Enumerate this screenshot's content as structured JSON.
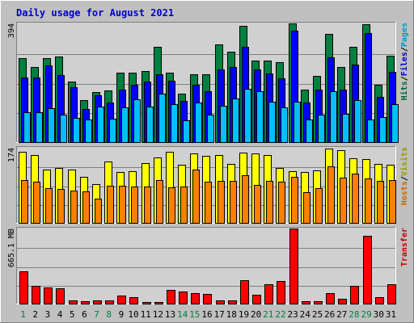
{
  "chart_data": {
    "type": "bar",
    "title": "Daily usage for August 2021",
    "days": [
      "1",
      "2",
      "3",
      "4",
      "5",
      "6",
      "7",
      "8",
      "9",
      "10",
      "11",
      "12",
      "13",
      "14",
      "15",
      "16",
      "17",
      "18",
      "19",
      "20",
      "21",
      "22",
      "23",
      "24",
      "25",
      "26",
      "27",
      "28",
      "29",
      "30",
      "31"
    ],
    "weekend_days": [
      "1",
      "7",
      "8",
      "14",
      "15",
      "21",
      "22",
      "28",
      "29"
    ],
    "panels": [
      {
        "id": "usage",
        "ylim": [
          0,
          394
        ],
        "tick_label": "394",
        "side_label": [
          {
            "text": "Hits",
            "color": "#006633"
          },
          {
            "text": "/",
            "color": "#000000"
          },
          {
            "text": "Files",
            "color": "#0000cc"
          },
          {
            "text": "/",
            "color": "#000000"
          },
          {
            "text": "Pages",
            "color": "#0099cc"
          }
        ],
        "series": [
          {
            "color": "#008040",
            "values": [
              278,
              250,
              280,
              285,
              200,
              140,
              165,
              172,
              230,
              230,
              235,
              315,
              230,
              160,
              225,
              225,
              325,
              300,
              385,
              270,
              272,
              265,
              395,
              175,
              220,
              360,
              248,
              315,
              390,
              190,
              288
            ]
          },
          {
            "color": "#0000ff",
            "values": [
              215,
              215,
              255,
              222,
              182,
              110,
              155,
              130,
              175,
              190,
              200,
              225,
              205,
              138,
              190,
              170,
              240,
              248,
              315,
              240,
              228,
              212,
              370,
              130,
              175,
              282,
              175,
              258,
              362,
              150,
              232
            ]
          },
          {
            "color": "#00bfff",
            "values": [
              100,
              100,
              112,
              90,
              80,
              75,
              118,
              78,
              115,
              142,
              118,
              162,
              125,
              72,
              130,
              90,
              120,
              145,
              178,
              168,
              135,
              115,
              135,
              75,
              92,
              168,
              95,
              140,
              75,
              82,
              125
            ]
          }
        ]
      },
      {
        "id": "sites",
        "ylim": [
          0,
          174
        ],
        "tick_label": "174",
        "side_label": [
          {
            "text": "Hosts",
            "color": "#cc6600"
          },
          {
            "text": "/",
            "color": "#000000"
          },
          {
            "text": "Visits",
            "color": "#999900"
          }
        ],
        "series": [
          {
            "color": "#ffff00",
            "values": [
              165,
              158,
              124,
              128,
              123,
              106,
              90,
              142,
              118,
              120,
              139,
              152,
              164,
              134,
              160,
              155,
              158,
              137,
              163,
              160,
              158,
              127,
              120,
              117,
              121,
              172,
              168,
              150,
              147,
              137,
              135
            ]
          },
          {
            "color": "#ff8000",
            "values": [
              100,
              95,
              80,
              79,
              75,
              73,
              56,
              86,
              86,
              85,
              85,
              100,
              82,
              85,
              123,
              95,
              98,
              98,
              110,
              87,
              97,
              95,
              106,
              72,
              81,
              131,
              105,
              115,
              102,
              98,
              100
            ]
          }
        ]
      },
      {
        "id": "transfer",
        "ylim": [
          0,
          665.1
        ],
        "tick_label": "665.1 MB",
        "side_label": [
          {
            "text": "Transfer",
            "color": "#cc0000"
          }
        ],
        "series": [
          {
            "color": "#ff0000",
            "values": [
              285,
              160,
              140,
              135,
              30,
              25,
              30,
              30,
              75,
              58,
              15,
              15,
              120,
              110,
              90,
              85,
              30,
              30,
              210,
              80,
              170,
              198,
              665,
              20,
              25,
              90,
              45,
              155,
              598,
              60,
              175
            ]
          }
        ]
      }
    ]
  }
}
